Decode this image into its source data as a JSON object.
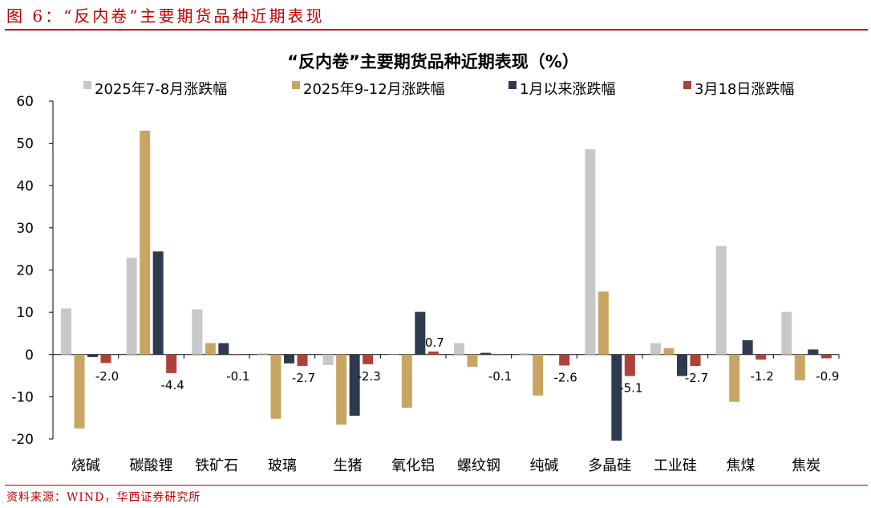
{
  "figure_title": "图 6：“反内卷”主要期货品种近期表现",
  "source": "资料来源：WIND，华西证券研究所",
  "chart_data": {
    "type": "bar",
    "title": "“反内卷”主要期货品种近期表现（%）",
    "categories": [
      "烧碱",
      "碳酸锂",
      "铁矿石",
      "玻璃",
      "生猪",
      "氧化铝",
      "螺纹钢",
      "纯碱",
      "多晶硅",
      "工业硅",
      "焦煤",
      "焦炭"
    ],
    "series": [
      {
        "name": "2025年7-8月涨跌幅",
        "color": "#c8c8c8",
        "values": [
          10.9,
          22.9,
          10.7,
          0.3,
          -2.5,
          0,
          2.7,
          0.3,
          48.6,
          2.7,
          25.7,
          10.1
        ]
      },
      {
        "name": "2025年9-12月涨跌幅",
        "color": "#c9a563",
        "values": [
          -17.5,
          53.0,
          2.7,
          -15.2,
          -16.6,
          -12.6,
          -2.9,
          -9.7,
          14.9,
          1.5,
          -11.2,
          -6.1
        ]
      },
      {
        "name": "1月以来涨跌幅",
        "color": "#2e3a4d",
        "values": [
          -0.6,
          24.4,
          2.7,
          -2.1,
          -14.5,
          10.1,
          0.4,
          0,
          -20.4,
          -5.1,
          3.4,
          1.2
        ]
      },
      {
        "name": "3月18日涨跌幅",
        "color": "#b0413a",
        "values": [
          -2.0,
          -4.4,
          -0.1,
          -2.7,
          -2.3,
          0.7,
          -0.1,
          -2.6,
          -5.1,
          -2.7,
          -1.2,
          -0.9
        ]
      }
    ],
    "data_labels": [
      "-2.0",
      "-4.4",
      "-0.1",
      "-2.7",
      "-2.3",
      "0.7",
      "-0.1",
      "-2.6",
      "-5.1",
      "-2.7",
      "-1.2",
      "-0.9"
    ],
    "ylim": [
      -20,
      60
    ],
    "yticks": [
      "60",
      "50",
      "40",
      "30",
      "20",
      "10",
      "0",
      "-10",
      "-20"
    ],
    "grid": false,
    "legend": "top"
  }
}
